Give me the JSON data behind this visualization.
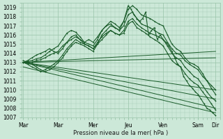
{
  "bg_color": "#cce8d8",
  "grid_color": "#99c4aa",
  "line_color": "#1a5c2a",
  "xlabel": "Pression niveau de la mer( hPa )",
  "ylim": [
    1007,
    1019.5
  ],
  "yticks": [
    1007,
    1008,
    1009,
    1010,
    1011,
    1012,
    1013,
    1014,
    1015,
    1016,
    1017,
    1018,
    1019
  ],
  "xtick_labels": [
    "Mar",
    "Mar",
    "Mer",
    "Jeu",
    "Ven",
    "Sam",
    "Dir"
  ],
  "xtick_positions": [
    0,
    48,
    96,
    144,
    192,
    240,
    264
  ],
  "xlim": [
    -2,
    270
  ],
  "series_smooth": [
    {
      "x": [
        0,
        6,
        12,
        18,
        24,
        30,
        36,
        42,
        48,
        54,
        60,
        66,
        72,
        78,
        84,
        90,
        96,
        102,
        108,
        114,
        120,
        126,
        132,
        138,
        144,
        150,
        156,
        162,
        168,
        174,
        180,
        186,
        192,
        198,
        204,
        210,
        216,
        222,
        228,
        234,
        240,
        246,
        252,
        258,
        264
      ],
      "y": [
        1013.0,
        1013.1,
        1013.2,
        1013.4,
        1013.5,
        1013.8,
        1014.2,
        1014.5,
        1014.8,
        1015.5,
        1016.2,
        1016.5,
        1016.3,
        1015.8,
        1015.2,
        1015.0,
        1014.8,
        1015.5,
        1016.5,
        1017.0,
        1017.5,
        1017.2,
        1016.8,
        1017.5,
        1018.8,
        1019.2,
        1018.8,
        1018.2,
        1018.0,
        1017.8,
        1017.5,
        1017.2,
        1017.0,
        1016.0,
        1015.0,
        1014.5,
        1014.2,
        1013.5,
        1013.0,
        1012.8,
        1012.5,
        1011.8,
        1011.0,
        1010.2,
        1009.5
      ],
      "marker": "+"
    },
    {
      "x": [
        0,
        6,
        12,
        18,
        24,
        30,
        36,
        42,
        48,
        54,
        60,
        66,
        72,
        78,
        84,
        90,
        96,
        102,
        108,
        114,
        120,
        126,
        132,
        138,
        144,
        150,
        156,
        162,
        168,
        174,
        180,
        186,
        192,
        198,
        204,
        210,
        216,
        222,
        228,
        234,
        240,
        246,
        252,
        258,
        264
      ],
      "y": [
        1013.0,
        1013.0,
        1013.0,
        1013.2,
        1013.3,
        1013.5,
        1013.8,
        1014.0,
        1014.2,
        1014.8,
        1015.2,
        1015.5,
        1015.8,
        1015.5,
        1015.0,
        1014.8,
        1014.5,
        1015.0,
        1016.0,
        1016.5,
        1017.0,
        1016.8,
        1016.5,
        1017.0,
        1018.2,
        1018.5,
        1017.8,
        1017.2,
        1017.0,
        1016.8,
        1016.5,
        1016.2,
        1016.0,
        1015.2,
        1014.5,
        1014.0,
        1013.8,
        1013.2,
        1012.8,
        1012.5,
        1012.2,
        1011.5,
        1011.0,
        1010.5,
        1010.0
      ],
      "marker": "+"
    },
    {
      "x": [
        0,
        6,
        12,
        18,
        24,
        30,
        36,
        42,
        48,
        54,
        60,
        66,
        72,
        78,
        84,
        90,
        96,
        102,
        108,
        114,
        120,
        126,
        132,
        138,
        144,
        150,
        156,
        162,
        168,
        174,
        180,
        186,
        192,
        198,
        204,
        210,
        216,
        222,
        228,
        234,
        240,
        246,
        252,
        258,
        264
      ],
      "y": [
        1013.0,
        1012.8,
        1012.5,
        1012.3,
        1012.0,
        1012.2,
        1012.5,
        1012.8,
        1013.2,
        1013.8,
        1014.5,
        1015.0,
        1015.5,
        1015.2,
        1015.0,
        1014.8,
        1014.5,
        1015.2,
        1015.8,
        1016.2,
        1016.5,
        1016.2,
        1016.0,
        1016.5,
        1017.5,
        1017.8,
        1017.2,
        1016.8,
        1016.5,
        1016.2,
        1016.0,
        1015.8,
        1015.5,
        1014.8,
        1014.0,
        1013.5,
        1013.2,
        1012.5,
        1012.0,
        1011.5,
        1011.2,
        1010.5,
        1009.8,
        1009.2,
        1008.8
      ],
      "marker": "+"
    },
    {
      "x": [
        0,
        6,
        12,
        18,
        24,
        30,
        36,
        42,
        48,
        54,
        60,
        66,
        72,
        78,
        84,
        90,
        96,
        102,
        108,
        114,
        120,
        126,
        132,
        138,
        144,
        150,
        156,
        162,
        168,
        174,
        180,
        186,
        192,
        198,
        204,
        210,
        216,
        222,
        228,
        234,
        240,
        246,
        252,
        258,
        264
      ],
      "y": [
        1013.2,
        1013.0,
        1012.8,
        1012.5,
        1012.2,
        1012.0,
        1012.2,
        1012.5,
        1013.0,
        1013.5,
        1014.2,
        1014.8,
        1015.2,
        1015.0,
        1014.8,
        1014.5,
        1014.2,
        1015.0,
        1015.5,
        1016.0,
        1016.5,
        1016.2,
        1016.0,
        1016.2,
        1017.2,
        1017.5,
        1016.8,
        1016.5,
        1016.2,
        1015.8,
        1015.5,
        1015.2,
        1014.8,
        1014.0,
        1013.2,
        1012.8,
        1012.5,
        1011.8,
        1011.2,
        1010.8,
        1010.5,
        1009.8,
        1009.2,
        1008.5,
        1007.8
      ],
      "marker": "+"
    }
  ],
  "series_straight": [
    {
      "x": [
        0,
        264
      ],
      "y": [
        1013.0,
        1013.5
      ]
    },
    {
      "x": [
        0,
        264
      ],
      "y": [
        1013.0,
        1014.2
      ]
    },
    {
      "x": [
        0,
        264
      ],
      "y": [
        1013.0,
        1010.0
      ]
    },
    {
      "x": [
        0,
        264
      ],
      "y": [
        1013.0,
        1009.0
      ]
    },
    {
      "x": [
        0,
        264
      ],
      "y": [
        1013.0,
        1008.0
      ]
    },
    {
      "x": [
        0,
        264
      ],
      "y": [
        1012.5,
        1007.5
      ]
    }
  ],
  "series_wiggly": [
    {
      "x": [
        0,
        6,
        12,
        18,
        24,
        30,
        36,
        42,
        48,
        54,
        60,
        66,
        72,
        78,
        84,
        90,
        96,
        102,
        108,
        114,
        120,
        126,
        132,
        138,
        144,
        148,
        152,
        156,
        160,
        164,
        168,
        172,
        176,
        180,
        184,
        188,
        192,
        196,
        200,
        204,
        208,
        212,
        216,
        220,
        224,
        228,
        232,
        236,
        240,
        244,
        248,
        252,
        256,
        260,
        264
      ],
      "y": [
        1013.0,
        1013.2,
        1013.5,
        1013.8,
        1014.0,
        1014.2,
        1014.5,
        1014.2,
        1014.0,
        1014.5,
        1015.2,
        1015.8,
        1016.0,
        1015.5,
        1015.2,
        1015.5,
        1015.2,
        1015.8,
        1016.5,
        1017.0,
        1017.2,
        1016.8,
        1016.5,
        1017.5,
        1019.2,
        1018.8,
        1018.2,
        1017.8,
        1017.5,
        1017.8,
        1018.5,
        1016.0,
        1016.5,
        1016.8,
        1015.5,
        1016.0,
        1015.5,
        1015.2,
        1014.8,
        1014.2,
        1013.5,
        1012.8,
        1012.5,
        1011.5,
        1011.0,
        1010.5,
        1010.2,
        1009.8,
        1009.5,
        1009.0,
        1008.5,
        1008.0,
        1007.8,
        1007.5,
        1007.2
      ],
      "marker": "+"
    }
  ]
}
